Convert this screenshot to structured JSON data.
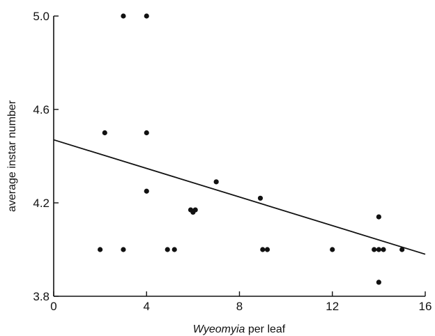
{
  "chart_data": {
    "type": "scatter",
    "title": "",
    "xlabel_italic": "Wyeomyia",
    "xlabel_rest": " per leaf",
    "ylabel": "average instar number",
    "xlim": [
      0,
      16
    ],
    "ylim": [
      3.8,
      5.0
    ],
    "x_ticks": [
      0,
      4,
      8,
      12,
      16
    ],
    "x_tick_labels": [
      "0",
      "4",
      "8",
      "12",
      "16"
    ],
    "y_ticks": [
      3.8,
      4.2,
      4.6,
      5.0
    ],
    "y_tick_labels": [
      "3.8",
      "4.2",
      "4.6",
      "5.0"
    ],
    "grid": false,
    "series": [
      {
        "points": [
          [
            3,
            5.0
          ],
          [
            4,
            5.0
          ],
          [
            2.2,
            4.5
          ],
          [
            4,
            4.5
          ],
          [
            4,
            4.25
          ],
          [
            7,
            4.29
          ],
          [
            8.9,
            4.22
          ],
          [
            5.9,
            4.17
          ],
          [
            6.1,
            4.17
          ],
          [
            6.0,
            4.16
          ],
          [
            2,
            4.0
          ],
          [
            3,
            4.0
          ],
          [
            4.9,
            4.0
          ],
          [
            5.2,
            4.0
          ],
          [
            9,
            4.0
          ],
          [
            9.2,
            4.0
          ],
          [
            12,
            4.0
          ],
          [
            13.8,
            4.0
          ],
          [
            14,
            4.0
          ],
          [
            14.2,
            4.0
          ],
          [
            15,
            4.0
          ],
          [
            14,
            4.14
          ],
          [
            14,
            3.86
          ]
        ]
      }
    ],
    "fit_line": {
      "x": [
        0,
        16
      ],
      "y": [
        4.47,
        3.98
      ]
    }
  }
}
